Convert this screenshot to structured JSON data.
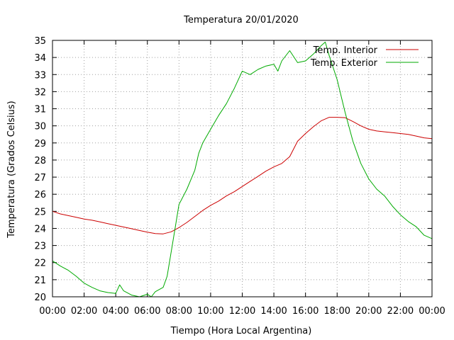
{
  "chart_data": {
    "type": "line",
    "title": "Temperatura 20/01/2020",
    "xlabel": "Tiempo (Hora Local Argentina)",
    "ylabel": "Temperatura (Grados Celsius)",
    "xlim": [
      0,
      24
    ],
    "ylim": [
      20,
      35
    ],
    "x_ticks": [
      "00:00",
      "02:00",
      "04:00",
      "06:00",
      "08:00",
      "10:00",
      "12:00",
      "14:00",
      "16:00",
      "18:00",
      "20:00",
      "22:00",
      "00:00"
    ],
    "y_ticks": [
      "20",
      "21",
      "22",
      "23",
      "24",
      "25",
      "26",
      "27",
      "28",
      "29",
      "30",
      "31",
      "32",
      "33",
      "34",
      "35"
    ],
    "grid": true,
    "legend_position": "top-right",
    "series": [
      {
        "name": "Temp. Interior",
        "color": "#cc0000",
        "x": [
          0,
          0.5,
          1,
          1.5,
          2,
          2.5,
          3,
          3.5,
          4,
          4.5,
          5,
          5.5,
          6,
          6.5,
          7,
          7.5,
          8,
          8.5,
          9,
          9.5,
          10,
          10.5,
          11,
          11.5,
          12,
          12.5,
          13,
          13.5,
          14,
          14.5,
          15,
          15.5,
          16,
          16.5,
          17,
          17.5,
          18,
          18.5,
          19,
          19.5,
          20,
          20.5,
          21,
          21.5,
          22,
          22.5,
          23,
          23.5,
          24
        ],
        "values": [
          25.0,
          24.85,
          24.75,
          24.65,
          24.55,
          24.48,
          24.38,
          24.28,
          24.18,
          24.08,
          23.98,
          23.88,
          23.78,
          23.7,
          23.68,
          23.8,
          24.05,
          24.35,
          24.7,
          25.05,
          25.35,
          25.6,
          25.9,
          26.15,
          26.45,
          26.75,
          27.05,
          27.35,
          27.6,
          27.8,
          28.2,
          29.1,
          29.55,
          29.95,
          30.3,
          30.5,
          30.5,
          30.48,
          30.25,
          30.0,
          29.8,
          29.7,
          29.65,
          29.6,
          29.55,
          29.5,
          29.4,
          29.3,
          29.25
        ]
      },
      {
        "name": "Temp. Exterior",
        "color": "#00aa00",
        "x": [
          0,
          0.5,
          1,
          1.5,
          2,
          2.5,
          3,
          3.5,
          4,
          4.25,
          4.5,
          5,
          5.5,
          6,
          6.25,
          6.5,
          7,
          7.25,
          7.5,
          7.75,
          8,
          8.5,
          9,
          9.25,
          9.5,
          10,
          10.5,
          11,
          11.5,
          12,
          12.5,
          13,
          13.5,
          14,
          14.25,
          14.5,
          15,
          15.5,
          16,
          16.5,
          17,
          17.25,
          17.5,
          18,
          18.5,
          19,
          19.5,
          20,
          20.5,
          21,
          21.5,
          22,
          22.5,
          23,
          23.5,
          24
        ],
        "values": [
          22.1,
          21.8,
          21.55,
          21.2,
          20.8,
          20.55,
          20.35,
          20.25,
          20.2,
          20.7,
          20.35,
          20.1,
          20.0,
          20.15,
          20.0,
          20.3,
          20.55,
          21.2,
          22.6,
          24.0,
          25.4,
          26.3,
          27.4,
          28.4,
          29.0,
          29.8,
          30.6,
          31.3,
          32.2,
          33.2,
          33.0,
          33.3,
          33.5,
          33.6,
          33.2,
          33.8,
          34.4,
          33.7,
          33.8,
          34.2,
          34.7,
          34.9,
          34.1,
          32.7,
          30.8,
          29.1,
          27.8,
          26.9,
          26.3,
          25.9,
          25.3,
          24.8,
          24.4,
          24.1,
          23.6,
          23.4
        ]
      }
    ]
  }
}
